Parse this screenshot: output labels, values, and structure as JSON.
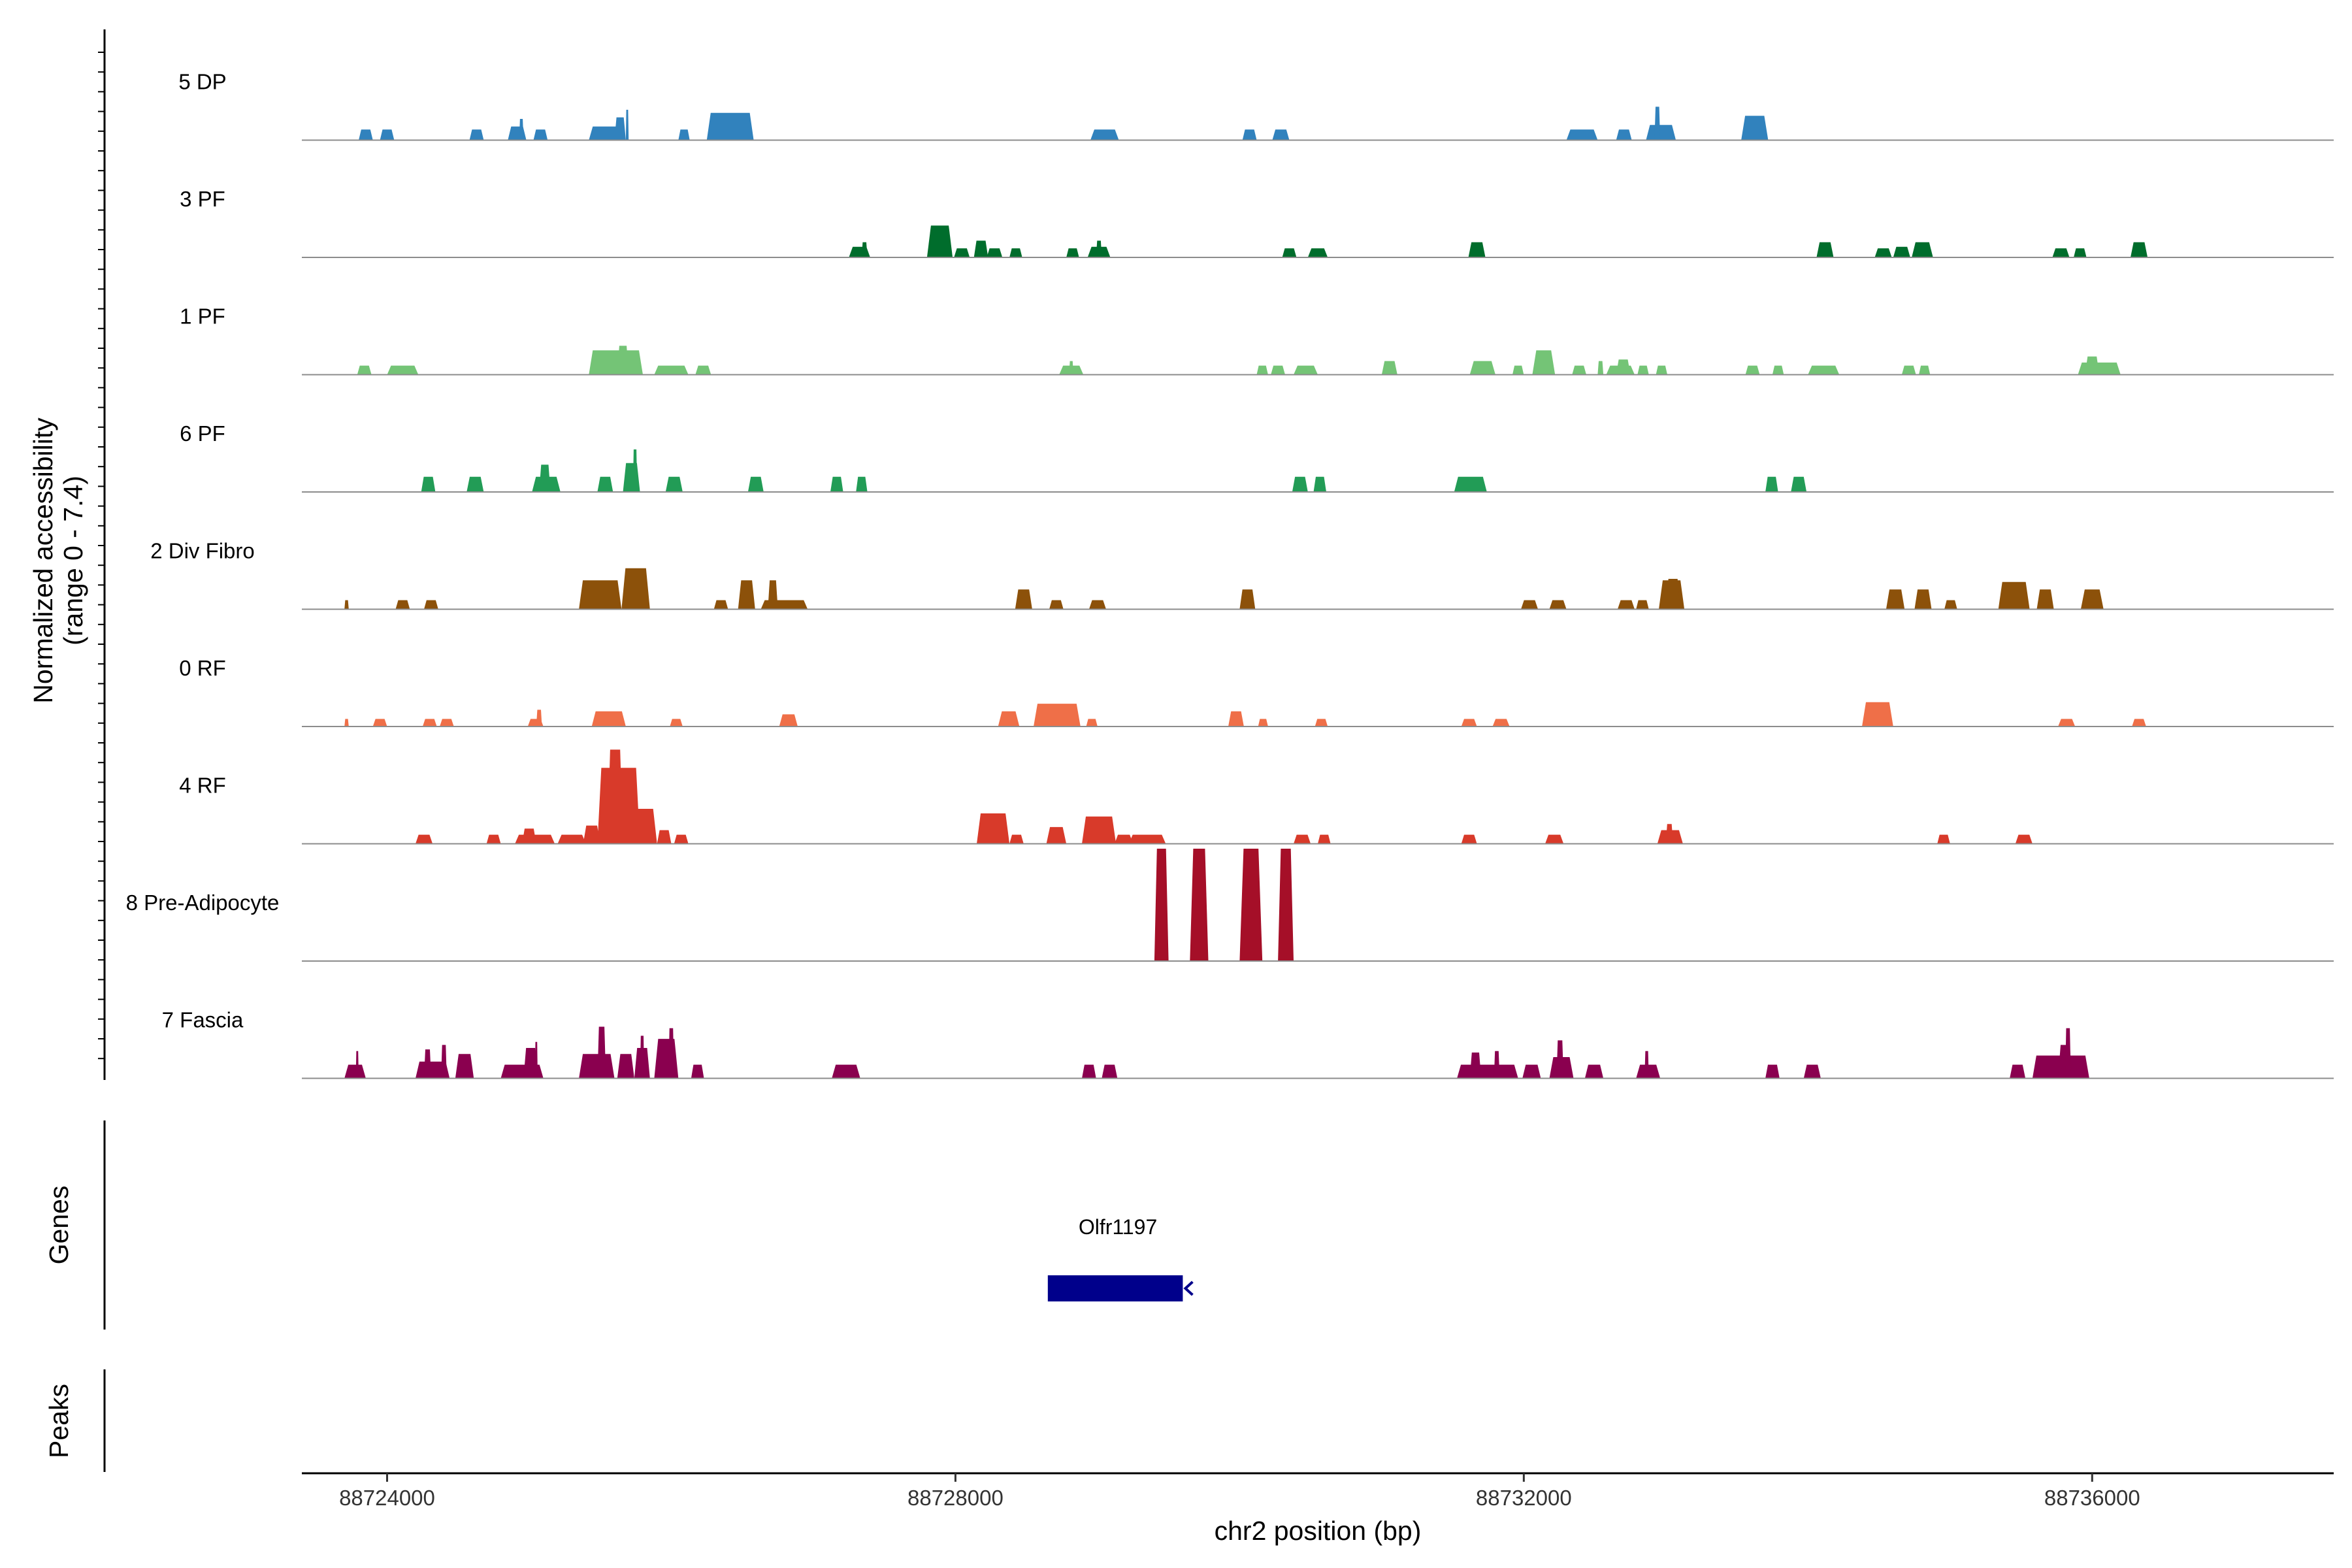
{
  "chart_data": {
    "type": "area",
    "title": "",
    "ylabel_line1": "Normalized accessibility",
    "ylabel_line2": "(range 0 - 7.4)",
    "xlabel": "chr2 position (bp)",
    "xlim": [
      88723400,
      88737700
    ],
    "ylim": [
      0,
      7.4
    ],
    "xticks": [
      88724000,
      88728000,
      88732000,
      88736000
    ],
    "xtick_labels": [
      "88724000",
      "88728000",
      "88732000",
      "88736000"
    ],
    "genes_label": "Genes",
    "peaks_label": "Peaks",
    "tracks": [
      {
        "name": "5 DP",
        "color": "#3182bd",
        "peaks": [
          [
            88723800,
            88723900,
            0.7
          ],
          [
            88723950,
            88724050,
            0.7
          ],
          [
            88724580,
            88724680,
            0.7
          ],
          [
            88724850,
            88724980,
            0.9
          ],
          [
            88724930,
            88724960,
            1.4
          ],
          [
            88725030,
            88725130,
            0.7
          ],
          [
            88725420,
            88725680,
            0.9
          ],
          [
            88725680,
            88725700,
            2.0
          ],
          [
            88725600,
            88725680,
            1.5
          ],
          [
            88726050,
            88726130,
            0.7
          ],
          [
            88726250,
            88726580,
            1.8
          ],
          [
            88728950,
            88729150,
            0.7
          ],
          [
            88730020,
            88730120,
            0.7
          ],
          [
            88730230,
            88730350,
            0.7
          ],
          [
            88732300,
            88732520,
            0.7
          ],
          [
            88732650,
            88732760,
            0.7
          ],
          [
            88732860,
            88733070,
            1.0
          ],
          [
            88732920,
            88732960,
            2.2
          ],
          [
            88733530,
            88733720,
            1.6
          ]
        ]
      },
      {
        "name": "3 PF",
        "color": "#006d2c",
        "peaks": [
          [
            88727250,
            88727400,
            0.7
          ],
          [
            88727340,
            88727380,
            1.0
          ],
          [
            88727800,
            88727980,
            2.1
          ],
          [
            88727990,
            88728100,
            0.6
          ],
          [
            88728220,
            88728330,
            0.6
          ],
          [
            88728130,
            88728230,
            1.1
          ],
          [
            88728380,
            88728470,
            0.6
          ],
          [
            88728780,
            88728870,
            0.6
          ],
          [
            88728930,
            88729090,
            0.7
          ],
          [
            88728990,
            88729030,
            1.1
          ],
          [
            88730300,
            88730400,
            0.6
          ],
          [
            88730480,
            88730620,
            0.6
          ],
          [
            88731610,
            88731730,
            1.0
          ],
          [
            88734060,
            88734180,
            1.0
          ],
          [
            88734470,
            88734590,
            0.6
          ],
          [
            88734600,
            88734720,
            0.7
          ],
          [
            88734730,
            88734880,
            1.0
          ],
          [
            88735720,
            88735840,
            0.6
          ],
          [
            88735870,
            88735960,
            0.6
          ],
          [
            88736270,
            88736390,
            1.0
          ]
        ]
      },
      {
        "name": "1 PF",
        "color": "#74c476",
        "peaks": [
          [
            88723790,
            88723890,
            0.6
          ],
          [
            88724000,
            88724220,
            0.6
          ],
          [
            88725420,
            88725800,
            1.6
          ],
          [
            88725620,
            88725700,
            1.9
          ],
          [
            88725880,
            88726120,
            0.6
          ],
          [
            88726170,
            88726280,
            0.6
          ],
          [
            88728730,
            88728900,
            0.6
          ],
          [
            88728800,
            88728830,
            0.9
          ],
          [
            88730120,
            88730200,
            0.6
          ],
          [
            88730220,
            88730320,
            0.6
          ],
          [
            88730380,
            88730550,
            0.6
          ],
          [
            88731000,
            88731110,
            0.9
          ],
          [
            88731620,
            88731800,
            0.9
          ],
          [
            88731920,
            88732000,
            0.6
          ],
          [
            88732060,
            88732220,
            1.6
          ],
          [
            88732340,
            88732440,
            0.6
          ],
          [
            88732520,
            88732560,
            0.9
          ],
          [
            88732580,
            88732780,
            0.6
          ],
          [
            88732650,
            88732750,
            1.0
          ],
          [
            88732800,
            88732880,
            0.6
          ],
          [
            88732930,
            88733010,
            0.6
          ],
          [
            88733560,
            88733660,
            0.6
          ],
          [
            88733750,
            88733830,
            0.6
          ],
          [
            88734000,
            88734220,
            0.6
          ],
          [
            88734660,
            88734760,
            0.6
          ],
          [
            88734780,
            88734860,
            0.6
          ],
          [
            88735900,
            88736200,
            0.8
          ],
          [
            88735950,
            88736050,
            1.2
          ]
        ]
      },
      {
        "name": "6 PF",
        "color": "#229c56",
        "peaks": [
          [
            88724240,
            88724340,
            1.0
          ],
          [
            88724560,
            88724680,
            1.0
          ],
          [
            88725020,
            88725220,
            1.0
          ],
          [
            88725070,
            88725150,
            1.8
          ],
          [
            88725480,
            88725590,
            1.0
          ],
          [
            88725660,
            88725780,
            1.9
          ],
          [
            88725730,
            88725760,
            2.8
          ],
          [
            88725960,
            88726080,
            1.0
          ],
          [
            88726540,
            88726650,
            1.0
          ],
          [
            88727120,
            88727210,
            1.0
          ],
          [
            88727300,
            88727380,
            1.0
          ],
          [
            88730370,
            88730480,
            1.0
          ],
          [
            88730520,
            88730610,
            1.0
          ],
          [
            88731510,
            88731740,
            1.0
          ],
          [
            88733700,
            88733790,
            1.0
          ],
          [
            88733880,
            88733990,
            1.0
          ]
        ]
      },
      {
        "name": "2 Div Fibro",
        "color": "#8c510a",
        "peaks": [
          [
            88723700,
            88723730,
            0.6
          ],
          [
            88724060,
            88724160,
            0.6
          ],
          [
            88724260,
            88724360,
            0.6
          ],
          [
            88725350,
            88725650,
            1.9
          ],
          [
            88725650,
            88725850,
            2.7
          ],
          [
            88726300,
            88726400,
            0.6
          ],
          [
            88726470,
            88726590,
            1.9
          ],
          [
            88726680,
            88726750,
            1.9
          ],
          [
            88726630,
            88726960,
            0.6
          ],
          [
            88728420,
            88728540,
            1.3
          ],
          [
            88728660,
            88728760,
            0.6
          ],
          [
            88728940,
            88729060,
            0.6
          ],
          [
            88730000,
            88730110,
            1.3
          ],
          [
            88731980,
            88732100,
            0.6
          ],
          [
            88732180,
            88732300,
            0.6
          ],
          [
            88732660,
            88732780,
            0.6
          ],
          [
            88732790,
            88732880,
            0.6
          ],
          [
            88732950,
            88733130,
            1.9
          ],
          [
            88733000,
            88733100,
            2.0
          ],
          [
            88734550,
            88734680,
            1.3
          ],
          [
            88734750,
            88734870,
            1.3
          ],
          [
            88734960,
            88735050,
            0.6
          ],
          [
            88735340,
            88735560,
            1.8
          ],
          [
            88735610,
            88735730,
            1.3
          ],
          [
            88735920,
            88736080,
            1.3
          ]
        ]
      },
      {
        "name": "0 RF",
        "color": "#ef6f48",
        "peaks": [
          [
            88723700,
            88723730,
            0.5
          ],
          [
            88723900,
            88724000,
            0.5
          ],
          [
            88724250,
            88724350,
            0.5
          ],
          [
            88724370,
            88724470,
            0.5
          ],
          [
            88724990,
            88725100,
            0.5
          ],
          [
            88725050,
            88725090,
            1.1
          ],
          [
            88725440,
            88725680,
            1.0
          ],
          [
            88725990,
            88726080,
            0.5
          ],
          [
            88726760,
            88726890,
            0.8
          ],
          [
            88728300,
            88728450,
            1.0
          ],
          [
            88728550,
            88728880,
            1.5
          ],
          [
            88728920,
            88729000,
            0.5
          ],
          [
            88729920,
            88730030,
            1.0
          ],
          [
            88730130,
            88730200,
            0.5
          ],
          [
            88730530,
            88730620,
            0.5
          ],
          [
            88731560,
            88731670,
            0.5
          ],
          [
            88731780,
            88731900,
            0.5
          ],
          [
            88734380,
            88734600,
            1.6
          ],
          [
            88735760,
            88735880,
            0.5
          ],
          [
            88736280,
            88736380,
            0.5
          ]
        ]
      },
      {
        "name": "4 RF",
        "color": "#d83a2a",
        "peaks": [
          [
            88724200,
            88724320,
            0.6
          ],
          [
            88724700,
            88724800,
            0.6
          ],
          [
            88724900,
            88725180,
            0.6
          ],
          [
            88724950,
            88725050,
            1.0
          ],
          [
            88725200,
            88725400,
            0.6
          ],
          [
            88725380,
            88725500,
            1.2
          ],
          [
            88725480,
            88725780,
            5.0
          ],
          [
            88725550,
            88725660,
            6.2
          ],
          [
            88725650,
            88725900,
            2.3
          ],
          [
            88725900,
            88726000,
            0.9
          ],
          [
            88726020,
            88726120,
            0.6
          ],
          [
            88728150,
            88728380,
            2.0
          ],
          [
            88728380,
            88728480,
            0.6
          ],
          [
            88728640,
            88728780,
            1.1
          ],
          [
            88728890,
            88729130,
            1.8
          ],
          [
            88729120,
            88729250,
            0.6
          ],
          [
            88729220,
            88729480,
            0.6
          ],
          [
            88730380,
            88730500,
            0.6
          ],
          [
            88730550,
            88730640,
            0.6
          ],
          [
            88731560,
            88731670,
            0.6
          ],
          [
            88732150,
            88732280,
            0.6
          ],
          [
            88732940,
            88733120,
            0.9
          ],
          [
            88733000,
            88733050,
            1.3
          ],
          [
            88734910,
            88735000,
            0.6
          ],
          [
            88735460,
            88735580,
            0.6
          ]
        ]
      },
      {
        "name": "8 Pre-Adipocyte",
        "color": "#a50f28",
        "peaks": [
          [
            88729400,
            88729500,
            7.4
          ],
          [
            88729650,
            88729780,
            7.4
          ],
          [
            88730000,
            88730160,
            7.4
          ],
          [
            88730270,
            88730380,
            7.4
          ]
        ]
      },
      {
        "name": "7 Fascia",
        "color": "#8a004f",
        "peaks": [
          [
            88723700,
            88723850,
            0.9
          ],
          [
            88723780,
            88723800,
            1.8
          ],
          [
            88724200,
            88724440,
            1.1
          ],
          [
            88724260,
            88724310,
            1.9
          ],
          [
            88724380,
            88724420,
            2.2
          ],
          [
            88724480,
            88724610,
            1.6
          ],
          [
            88724800,
            88725100,
            0.9
          ],
          [
            88724960,
            88725060,
            2.0
          ],
          [
            88725040,
            88725060,
            2.4
          ],
          [
            88725350,
            88725600,
            1.6
          ],
          [
            88725480,
            88725540,
            3.4
          ],
          [
            88725620,
            88725740,
            1.6
          ],
          [
            88725740,
            88725850,
            2.0
          ],
          [
            88725780,
            88725810,
            2.8
          ],
          [
            88725880,
            88726050,
            2.6
          ],
          [
            88725980,
            88726020,
            3.3
          ],
          [
            88726140,
            88726230,
            0.9
          ],
          [
            88727130,
            88727330,
            0.9
          ],
          [
            88728890,
            88728990,
            0.9
          ],
          [
            88729030,
            88729140,
            0.9
          ],
          [
            88731530,
            88731960,
            0.9
          ],
          [
            88731620,
            88731700,
            1.7
          ],
          [
            88731790,
            88731830,
            1.8
          ],
          [
            88731990,
            88732120,
            0.9
          ],
          [
            88732180,
            88732350,
            1.4
          ],
          [
            88732230,
            88732280,
            2.5
          ],
          [
            88732430,
            88732560,
            0.9
          ],
          [
            88732790,
            88732960,
            0.9
          ],
          [
            88732850,
            88732880,
            1.8
          ],
          [
            88733700,
            88733800,
            0.9
          ],
          [
            88733970,
            88734090,
            0.9
          ],
          [
            88735420,
            88735530,
            0.9
          ],
          [
            88735580,
            88735980,
            1.5
          ],
          [
            88735760,
            88735860,
            2.2
          ],
          [
            88735810,
            88735850,
            3.3
          ]
        ]
      }
    ]
  },
  "gene": {
    "name": "Olfr1197",
    "start": 88728650,
    "end": 88729600,
    "strand": "-"
  }
}
